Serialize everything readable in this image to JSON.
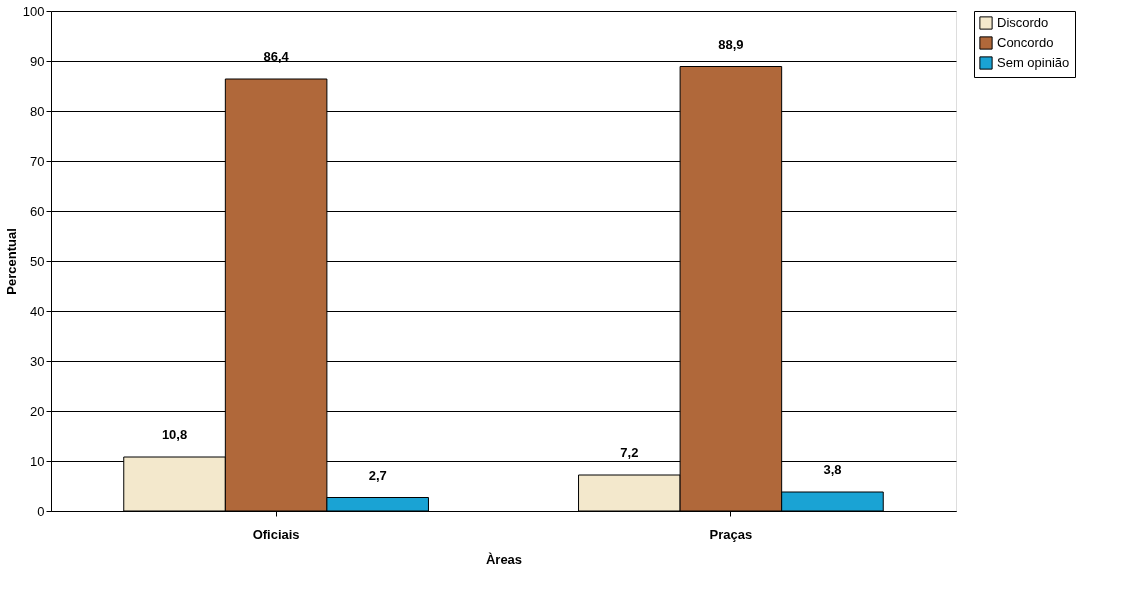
{
  "chart_data": {
    "type": "bar",
    "xlabel": "Àreas",
    "ylabel": "Percentual",
    "categories": [
      "Oficiais",
      "Praças"
    ],
    "series": [
      {
        "name": "Discordo",
        "color": "#f3e8cc",
        "values": [
          10.8,
          7.2
        ],
        "value_labels": [
          "10,8",
          "7,2"
        ]
      },
      {
        "name": "Concordo",
        "color": "#b0683a",
        "values": [
          86.4,
          88.9
        ],
        "value_labels": [
          "86,4",
          "88,9"
        ]
      },
      {
        "name": "Sem opinião",
        "color": "#1aa3d4",
        "values": [
          2.7,
          3.8
        ],
        "value_labels": [
          "2,7",
          "3,8"
        ]
      }
    ],
    "ylim": [
      0,
      100
    ],
    "yticks": [
      0,
      10,
      20,
      30,
      40,
      50,
      60,
      70,
      80,
      90,
      100
    ],
    "grid": "y",
    "legend": "right"
  }
}
